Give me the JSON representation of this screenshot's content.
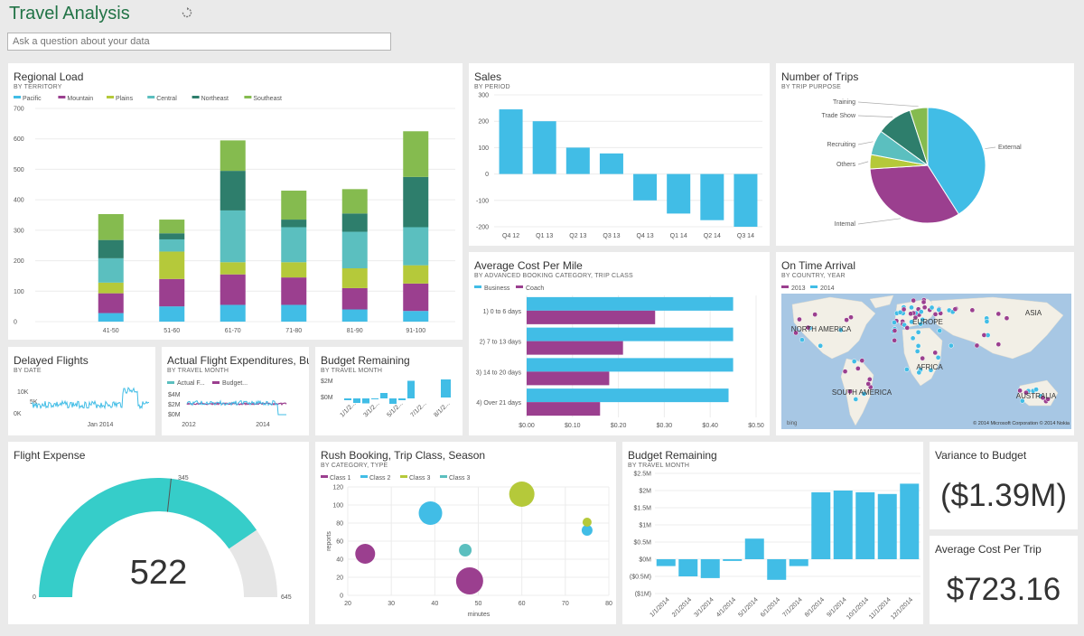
{
  "header": {
    "title": "Travel Analysis"
  },
  "qa": {
    "placeholder": "Ask a question about your data"
  },
  "colors": {
    "blue": "#41bde6",
    "purple": "#9b3f8f",
    "lime": "#b5c93a",
    "teal": "#5bbfbf",
    "darkteal": "#2e7e6c",
    "green": "#85bb4f",
    "gray": "#e6e6e6",
    "gaugeTeal": "#36cdc9"
  },
  "regional_load": {
    "title": "Regional Load",
    "subtitle": "BY TERRITORY",
    "chart_data": {
      "type": "bar",
      "categories": [
        "41-50",
        "51-60",
        "61-70",
        "71-80",
        "81-90",
        "91-100"
      ],
      "series": [
        {
          "name": "Pacific",
          "values": [
            28,
            50,
            55,
            55,
            40,
            35
          ]
        },
        {
          "name": "Mountain",
          "values": [
            65,
            90,
            100,
            90,
            70,
            90
          ]
        },
        {
          "name": "Plains",
          "values": [
            35,
            90,
            40,
            50,
            65,
            60
          ]
        },
        {
          "name": "Central",
          "values": [
            80,
            40,
            170,
            115,
            120,
            125
          ]
        },
        {
          "name": "Northeast",
          "values": [
            60,
            20,
            130,
            25,
            60,
            165
          ]
        },
        {
          "name": "Southeast",
          "values": [
            85,
            45,
            100,
            95,
            80,
            150
          ]
        }
      ],
      "ylim": [
        0,
        700
      ],
      "yticks": [
        0,
        100,
        200,
        300,
        400,
        500,
        600,
        700
      ]
    }
  },
  "sales": {
    "title": "Sales",
    "subtitle": "BY PERIOD",
    "chart_data": {
      "type": "bar",
      "categories": [
        "Q4 12",
        "Q1 13",
        "Q2 13",
        "Q3 13",
        "Q4 13",
        "Q1 14",
        "Q2 14",
        "Q3 14"
      ],
      "values": [
        245,
        200,
        100,
        78,
        -100,
        -150,
        -175,
        -200
      ],
      "ylim": [
        -200,
        300
      ],
      "yticks": [
        -200,
        -100,
        0,
        100,
        200,
        300
      ]
    }
  },
  "trips": {
    "title": "Number of Trips",
    "subtitle": "BY TRIP PURPOSE",
    "chart_data": {
      "type": "pie",
      "labels": [
        "External",
        "Internal",
        "Others",
        "Recruiting",
        "Trade Show",
        "Training"
      ],
      "values": [
        41,
        33,
        4,
        7,
        10,
        5
      ]
    }
  },
  "cost_per_mile": {
    "title": "Average Cost Per Mile",
    "subtitle": "BY ADVANCED BOOKING CATEGORY, TRIP CLASS",
    "chart_data": {
      "type": "bar",
      "categories": [
        "1) 0 to 6 days",
        "2) 7 to 13 days",
        "3) 14 to 20 days",
        "4) Over 21 days"
      ],
      "series": [
        {
          "name": "Business",
          "values": [
            0.45,
            0.45,
            0.45,
            0.44
          ]
        },
        {
          "name": "Coach",
          "values": [
            0.28,
            0.21,
            0.18,
            0.16
          ]
        }
      ],
      "xlim": [
        0,
        0.5
      ],
      "xticks": [
        "$0.00",
        "$0.10",
        "$0.20",
        "$0.30",
        "$0.40",
        "$0.50"
      ]
    }
  },
  "on_time": {
    "title": "On Time Arrival",
    "subtitle": "BY COUNTRY, YEAR",
    "legend": [
      "2013",
      "2014"
    ],
    "labels": [
      "NORTH AMERICA",
      "SOUTH AMERICA",
      "EUROPE",
      "ASIA",
      "AFRICA",
      "AUSTRALIA"
    ],
    "bing": "bing",
    "copyright": "© 2014 Microsoft Corporation   © 2014 Nokia"
  },
  "delayed": {
    "title": "Delayed Flights",
    "subtitle": "BY DATE",
    "yticks": [
      "10K",
      "5K",
      "0K"
    ],
    "xlabel": "Jan 2014"
  },
  "actual_exp": {
    "title": "Actual Flight Expenditures, Bu...",
    "subtitle": "BY TRAVEL MONTH",
    "legend": [
      "Actual F...",
      "Budget..."
    ],
    "yticks": [
      "$4M",
      "$2M",
      "$0M"
    ],
    "xticks": [
      "2012",
      "2014"
    ]
  },
  "budget_small": {
    "title": "Budget Remaining",
    "subtitle": "BY TRAVEL MONTH",
    "yticks": [
      "$2M",
      "$0M"
    ],
    "xticks": [
      "1/1/2...",
      "3/1/2...",
      "5/1/2...",
      "7/1/2...",
      "8/1/2..."
    ]
  },
  "flight_expense": {
    "title": "Flight Expense",
    "value": "522",
    "min": "0",
    "max": "645",
    "target": "345",
    "chart_data": {
      "type": "gauge",
      "value": 522,
      "min": 0,
      "max": 645,
      "target": 345
    }
  },
  "rush": {
    "title": "Rush Booking, Trip Class, Season",
    "subtitle": "BY CATEGORY, TYPE",
    "legend": [
      "Class 1",
      "Class 2",
      "Class 3",
      "Class 3"
    ],
    "xlabel": "minutes",
    "ylabel": "reports",
    "chart_data": {
      "type": "scatter",
      "xlim": [
        20,
        80
      ],
      "ylim": [
        0,
        120
      ],
      "xticks": [
        20,
        30,
        40,
        50,
        60,
        70,
        80
      ],
      "yticks": [
        0,
        20,
        40,
        60,
        80,
        100,
        120
      ],
      "points": [
        {
          "x": 24,
          "y": 46,
          "r": 11,
          "s": 0
        },
        {
          "x": 48,
          "y": 16,
          "r": 15,
          "s": 0
        },
        {
          "x": 39,
          "y": 91,
          "r": 13,
          "s": 1
        },
        {
          "x": 75,
          "y": 72,
          "r": 6,
          "s": 1
        },
        {
          "x": 75,
          "y": 81,
          "r": 5,
          "s": 2
        },
        {
          "x": 60,
          "y": 112,
          "r": 14,
          "s": 2
        },
        {
          "x": 47,
          "y": 50,
          "r": 7,
          "s": 3
        }
      ]
    }
  },
  "budget_large": {
    "title": "Budget Remaining",
    "subtitle": "BY TRAVEL MONTH",
    "chart_data": {
      "type": "bar",
      "categories": [
        "1/1/2014",
        "2/1/2014",
        "3/1/2014",
        "4/1/2014",
        "5/1/2014",
        "6/1/2014",
        "7/1/2014",
        "8/1/2014",
        "9/1/2014",
        "10/1/2014",
        "11/1/2014",
        "12/1/2014"
      ],
      "values": [
        -0.2,
        -0.5,
        -0.55,
        -0.05,
        0.6,
        -0.6,
        -0.2,
        1.95,
        2.0,
        1.95,
        1.9,
        2.2
      ],
      "ylim": [
        -1,
        2.5
      ],
      "yticks": [
        "$2.5M",
        "$2M",
        "$1.5M",
        "$1M",
        "$0.5M",
        "$0M",
        "($0.5M)",
        "($1M)"
      ]
    }
  },
  "variance": {
    "title": "Variance to Budget",
    "value": "($1.39M)"
  },
  "avg_trip": {
    "title": "Average Cost Per Trip",
    "value": "$723.16"
  }
}
